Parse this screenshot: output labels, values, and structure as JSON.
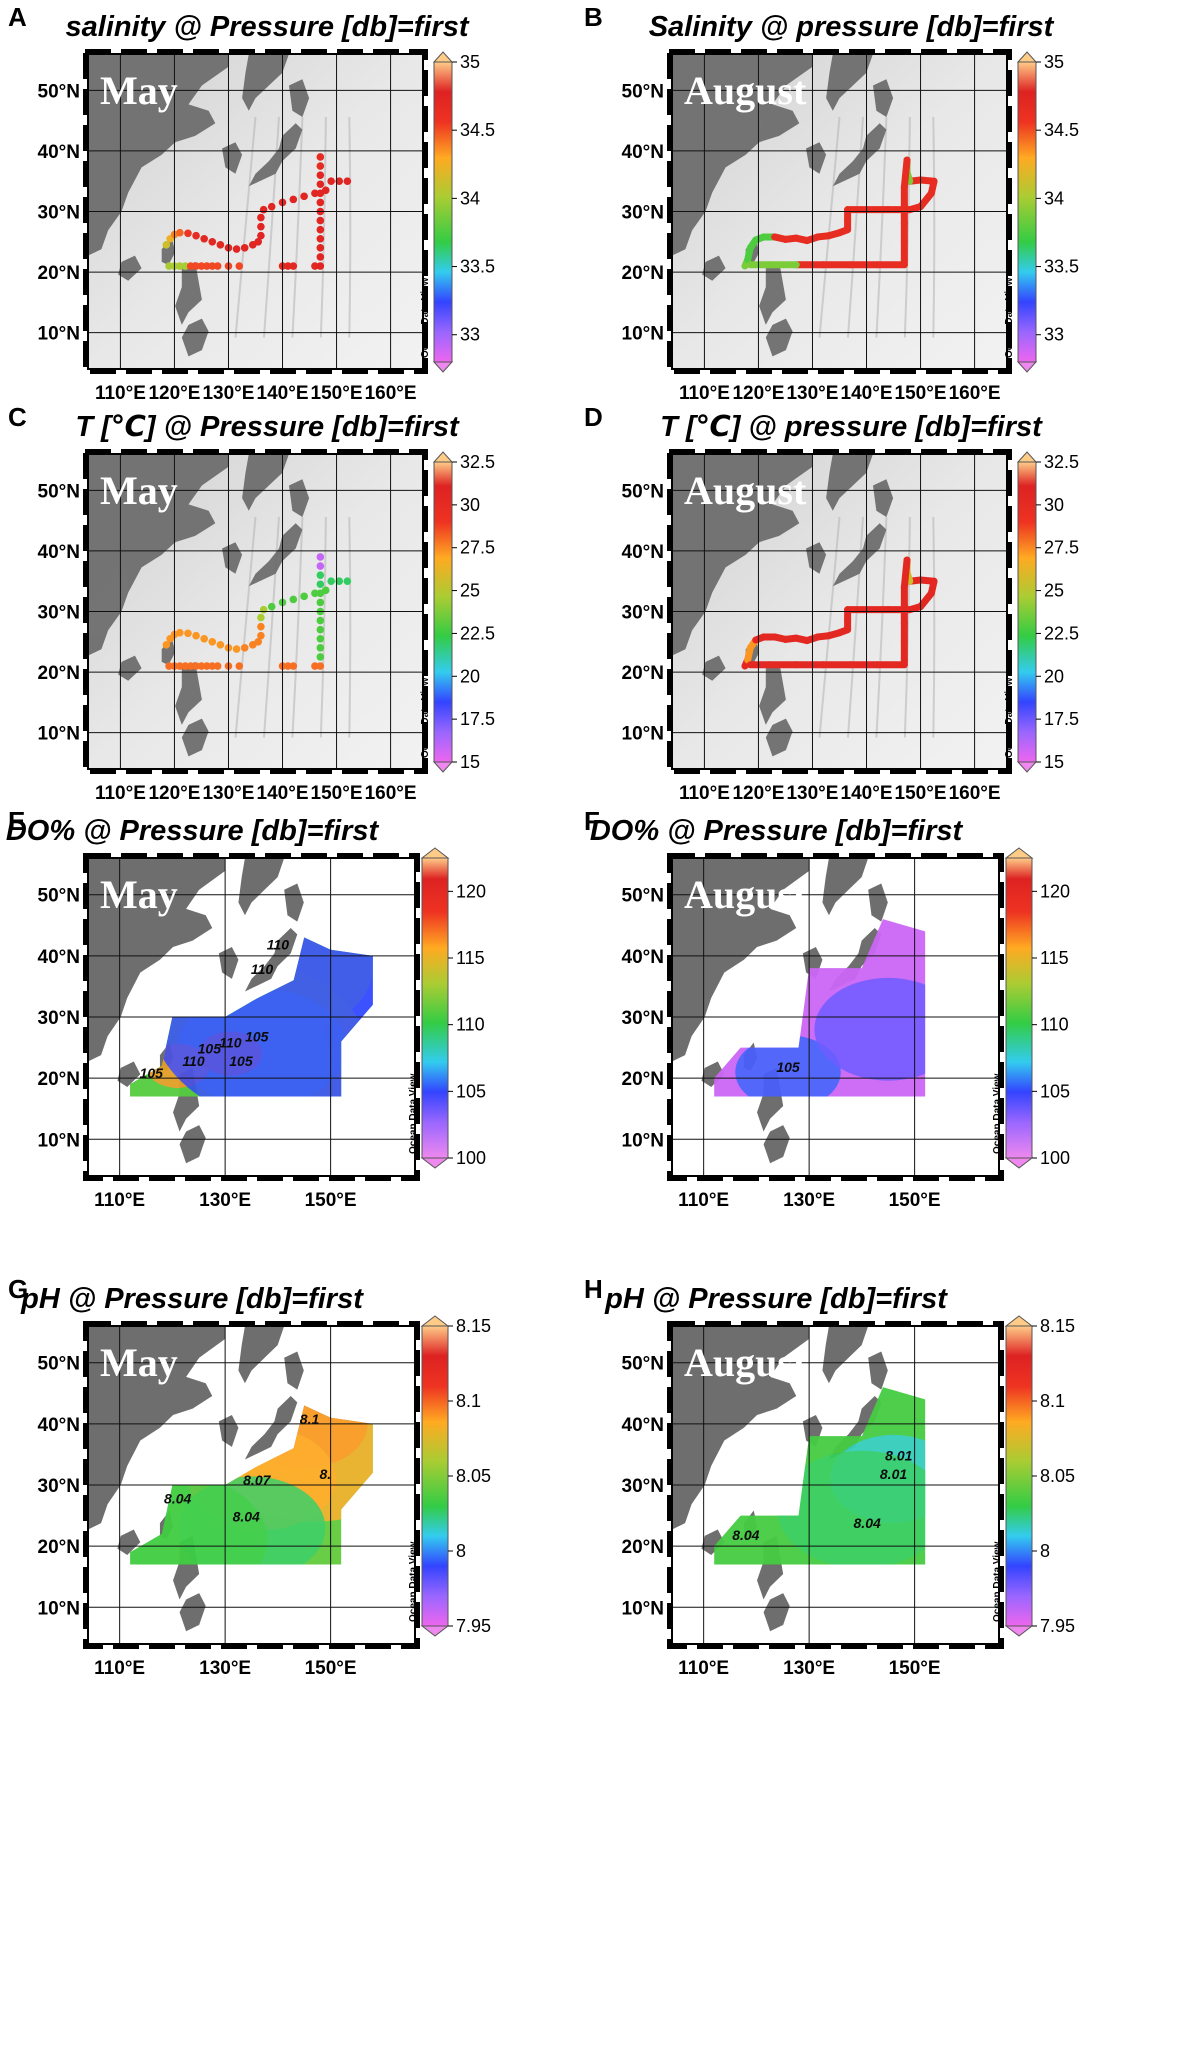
{
  "panels": [
    {
      "id": "A",
      "title": "salinity @ Pressure [db]=first",
      "month": "May",
      "kind": "track",
      "style": "dots",
      "lat_ticks": [
        "50°N",
        "40°N",
        "30°N",
        "20°N",
        "10°N"
      ],
      "lon_ticks": [
        "110°E",
        "120°E",
        "130°E",
        "140°E",
        "150°E",
        "160°E"
      ],
      "colorbar": {
        "ticks": [
          "35",
          "34.5",
          "34",
          "33.5",
          "33"
        ],
        "min": 32.8,
        "max": 35
      }
    },
    {
      "id": "B",
      "title": "Salinity @ pressure [db]=first",
      "month": "August",
      "kind": "track",
      "style": "line",
      "lat_ticks": [
        "50°N",
        "40°N",
        "30°N",
        "20°N",
        "10°N"
      ],
      "lon_ticks": [
        "110°E",
        "120°E",
        "130°E",
        "140°E",
        "150°E",
        "160°E"
      ],
      "colorbar": {
        "ticks": [
          "35",
          "34.5",
          "34",
          "33.5",
          "33"
        ],
        "min": 32.8,
        "max": 35
      }
    },
    {
      "id": "C",
      "title": "T [℃] @ Pressure [db]=first",
      "month": "May",
      "kind": "track",
      "style": "dots",
      "lat_ticks": [
        "50°N",
        "40°N",
        "30°N",
        "20°N",
        "10°N"
      ],
      "lon_ticks": [
        "110°E",
        "120°E",
        "130°E",
        "140°E",
        "150°E",
        "160°E"
      ],
      "colorbar": {
        "ticks": [
          "32.5",
          "30",
          "27.5",
          "25",
          "22.5",
          "20",
          "17.5",
          "15"
        ],
        "min": 15,
        "max": 32.5
      }
    },
    {
      "id": "D",
      "title": "T [℃] @ pressure [db]=first",
      "month": "August",
      "kind": "track",
      "style": "line",
      "lat_ticks": [
        "50°N",
        "40°N",
        "30°N",
        "20°N",
        "10°N"
      ],
      "lon_ticks": [
        "110°E",
        "120°E",
        "130°E",
        "140°E",
        "150°E",
        "160°E"
      ],
      "colorbar": {
        "ticks": [
          "32.5",
          "30",
          "27.5",
          "25",
          "22.5",
          "20",
          "17.5",
          "15"
        ],
        "min": 15,
        "max": 32.5
      }
    },
    {
      "id": "E",
      "title": "DO% @ Pressure [db]=first",
      "month": "May",
      "kind": "field",
      "lat_ticks": [
        "50°N",
        "40°N",
        "30°N",
        "20°N",
        "10°N"
      ],
      "lon_ticks": [
        "110°E",
        "130°E",
        "150°E"
      ],
      "colorbar": {
        "ticks": [
          "120",
          "115",
          "110",
          "105",
          "100"
        ],
        "min": 100,
        "max": 122.5
      },
      "contour_labels": [
        "110",
        "110",
        "110",
        "110",
        "105",
        "105",
        "105",
        "105"
      ]
    },
    {
      "id": "F",
      "title": "DO% @ Pressure [db]=first",
      "month": "August",
      "kind": "field",
      "lat_ticks": [
        "50°N",
        "40°N",
        "30°N",
        "20°N",
        "10°N"
      ],
      "lon_ticks": [
        "110°E",
        "130°E",
        "150°E"
      ],
      "colorbar": {
        "ticks": [
          "120",
          "115",
          "110",
          "105",
          "100"
        ],
        "min": 100,
        "max": 122.5
      },
      "contour_labels": [
        "105"
      ]
    },
    {
      "id": "G",
      "title": "pH @ Pressure [db]=first",
      "month": "May",
      "kind": "field",
      "lat_ticks": [
        "50°N",
        "40°N",
        "30°N",
        "20°N",
        "10°N"
      ],
      "lon_ticks": [
        "110°E",
        "130°E",
        "150°E"
      ],
      "colorbar": {
        "ticks": [
          "8.15",
          "8.1",
          "8.05",
          "8",
          "7.95"
        ],
        "min": 7.95,
        "max": 8.15
      },
      "contour_labels": [
        "8.07",
        "8.04",
        "8.04",
        "8.1",
        "8."
      ]
    },
    {
      "id": "H",
      "title": "pH @ Pressure [db]=first",
      "month": "August",
      "kind": "field",
      "lat_ticks": [
        "50°N",
        "40°N",
        "30°N",
        "20°N",
        "10°N"
      ],
      "lon_ticks": [
        "110°E",
        "130°E",
        "150°E"
      ],
      "colorbar": {
        "ticks": [
          "8.15",
          "8.1",
          "8.05",
          "8",
          "7.95"
        ],
        "min": 7.95,
        "max": 8.15
      },
      "contour_labels": [
        "8.01",
        "8.01",
        "8.04",
        "8.04"
      ]
    }
  ],
  "watermark": "Ocean Data View"
}
